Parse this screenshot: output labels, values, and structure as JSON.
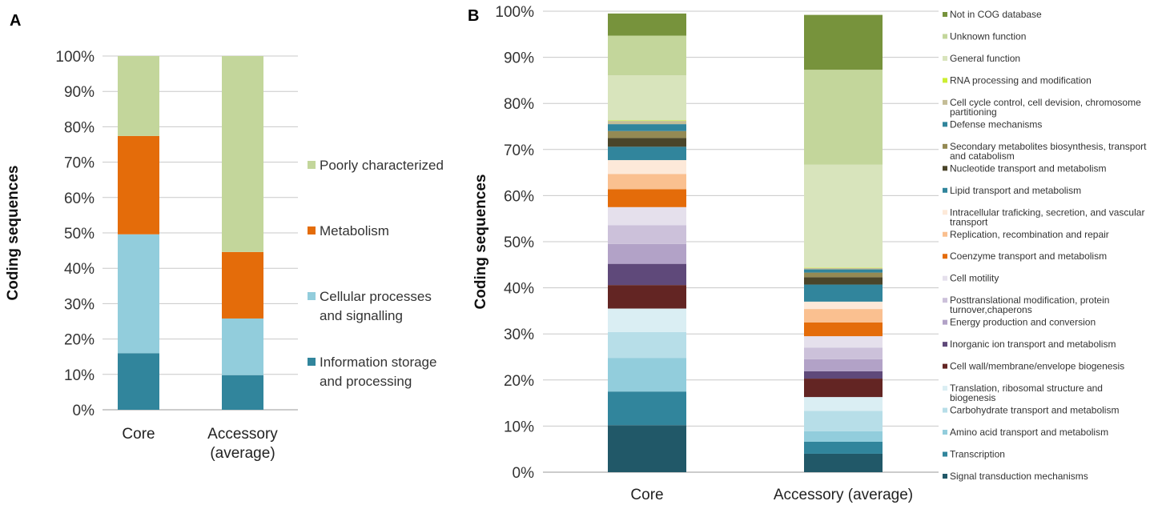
{
  "chart_data": [
    {
      "panel": "A",
      "type": "bar",
      "stacked": true,
      "ylabel": "Coding sequences",
      "ylim": [
        0,
        100
      ],
      "yticks": [
        "0%",
        "10%",
        "20%",
        "30%",
        "40%",
        "50%",
        "60%",
        "70%",
        "80%",
        "90%",
        "100%"
      ],
      "categories": [
        [
          "Core"
        ],
        [
          "Accessory",
          "(average)"
        ]
      ],
      "series": [
        {
          "name": "Information storage and processing",
          "legend_lines": [
            "Information storage",
            "and processing"
          ],
          "color": "#31859C",
          "values": [
            16.0,
            9.8
          ]
        },
        {
          "name": "Cellular processes and signalling",
          "legend_lines": [
            "Cellular processes",
            "and signalling"
          ],
          "color": "#92CDDC",
          "values": [
            33.6,
            16.0
          ]
        },
        {
          "name": "Metabolism",
          "legend_lines": [
            "Metabolism"
          ],
          "color": "#E46C0A",
          "values": [
            27.8,
            18.8
          ]
        },
        {
          "name": "Poorly characterized",
          "legend_lines": [
            "Poorly characterized"
          ],
          "color": "#C3D69B",
          "values": [
            22.6,
            55.4
          ]
        }
      ]
    },
    {
      "panel": "B",
      "type": "bar",
      "stacked": true,
      "ylabel": "Coding  sequences",
      "ylim": [
        0,
        100
      ],
      "yticks": [
        "0%",
        "10%",
        "20%",
        "30%",
        "40%",
        "50%",
        "60%",
        "70%",
        "80%",
        "90%",
        "100%"
      ],
      "categories": [
        [
          "Core"
        ],
        [
          "Accessory (average)"
        ]
      ],
      "series": [
        {
          "name": "Signal transduction mechanisms",
          "legend_lines": [
            "Signal transduction mechanisms"
          ],
          "color": "#215868",
          "values": [
            10.2,
            4.0
          ]
        },
        {
          "name": "Transcription",
          "legend_lines": [
            "Transcription"
          ],
          "color": "#31859C",
          "values": [
            7.3,
            2.6
          ]
        },
        {
          "name": "Amino acid transport and metabolism",
          "legend_lines": [
            "Amino acid transport and metabolism"
          ],
          "color": "#92CDDC",
          "values": [
            7.3,
            2.3
          ]
        },
        {
          "name": "Carbohydrate transport and metabolism",
          "legend_lines": [
            "Carbohydrate transport and metabolism"
          ],
          "color": "#B7DEE8",
          "values": [
            5.6,
            4.4
          ]
        },
        {
          "name": "Translation, ribosomal structure and biogenesis",
          "legend_lines": [
            "Translation, ribosomal structure and",
            "biogenesis"
          ],
          "color": "#DAEEF3",
          "values": [
            5.1,
            3.0
          ]
        },
        {
          "name": "Cell wall/membrane/envelope biogenesis",
          "legend_lines": [
            "Cell wall/membrane/envelope biogenesis"
          ],
          "color": "#632523",
          "values": [
            5.1,
            4.0
          ]
        },
        {
          "name": "Inorganic ion transport and metabolism",
          "legend_lines": [
            "Inorganic ion transport and metabolism"
          ],
          "color": "#5F497A",
          "values": [
            4.6,
            1.6
          ]
        },
        {
          "name": "Energy production and conversion",
          "legend_lines": [
            "Energy production and conversion"
          ],
          "color": "#B2A2C7",
          "values": [
            4.3,
            2.6
          ]
        },
        {
          "name": "Posttranslational modification, protein turnover,chaperons",
          "legend_lines": [
            "Posttranslational modification, protein",
            "turnover,chaperons"
          ],
          "color": "#CCC1DA",
          "values": [
            4.1,
            2.5
          ]
        },
        {
          "name": "Cell motility",
          "legend_lines": [
            "Cell motility"
          ],
          "color": "#E5E0EC",
          "values": [
            3.9,
            2.5
          ]
        },
        {
          "name": "Coenzyme transport and metabolism",
          "legend_lines": [
            "Coenzyme transport and metabolism"
          ],
          "color": "#E46C0A",
          "values": [
            3.9,
            3.0
          ]
        },
        {
          "name": "Replication, recombination and repair",
          "legend_lines": [
            "Replication, recombination and repair"
          ],
          "color": "#FAC090",
          "values": [
            3.3,
            2.9
          ]
        },
        {
          "name": "Intracellular traficking, secretion, and vascular transport",
          "legend_lines": [
            "Intracellular traficking, secretion, and vascular",
            "transport"
          ],
          "color": "#FDE9D9",
          "values": [
            3.0,
            1.6
          ]
        },
        {
          "name": "Lipid transport and metabolism",
          "legend_lines": [
            "Lipid transport and metabolism"
          ],
          "color": "#31859C",
          "values": [
            2.9,
            3.7
          ]
        },
        {
          "name": "Nucleotide transport and metabolism",
          "legend_lines": [
            "Nucleotide transport and metabolism"
          ],
          "color": "#4A452A",
          "values": [
            1.9,
            1.6
          ]
        },
        {
          "name": "Secondary metabolites biosynthesis, transport and catabolism",
          "legend_lines": [
            "Secondary metabolites biosynthesis, transport",
            "and catabolism"
          ],
          "color": "#948A54",
          "values": [
            1.5,
            1.0
          ]
        },
        {
          "name": "Defense mechanisms",
          "legend_lines": [
            "Defense mechanisms"
          ],
          "color": "#31859C",
          "values": [
            1.5,
            0.7
          ]
        },
        {
          "name": "Cell cycle control, cell devision, chromosome partitioning",
          "legend_lines": [
            "Cell cycle control, cell devision, chromosome",
            "partitioning"
          ],
          "color": "#C4BD97",
          "values": [
            0.7,
            0.3
          ]
        },
        {
          "name": "RNA processing and modification",
          "legend_lines": [
            "RNA processing and modification"
          ],
          "color": "#CCEE33",
          "values": [
            0.1,
            0.1
          ]
        },
        {
          "name": "General function",
          "legend_lines": [
            "General function"
          ],
          "color": "#D8E4BC",
          "values": [
            9.8,
            22.3
          ]
        },
        {
          "name": "Unknown function",
          "legend_lines": [
            "Unknown function"
          ],
          "color": "#C3D69B",
          "values": [
            8.6,
            20.6
          ]
        },
        {
          "name": "Not in COG database",
          "legend_lines": [
            "Not in COG database"
          ],
          "color": "#77933C",
          "values": [
            4.8,
            11.9
          ]
        }
      ]
    }
  ]
}
